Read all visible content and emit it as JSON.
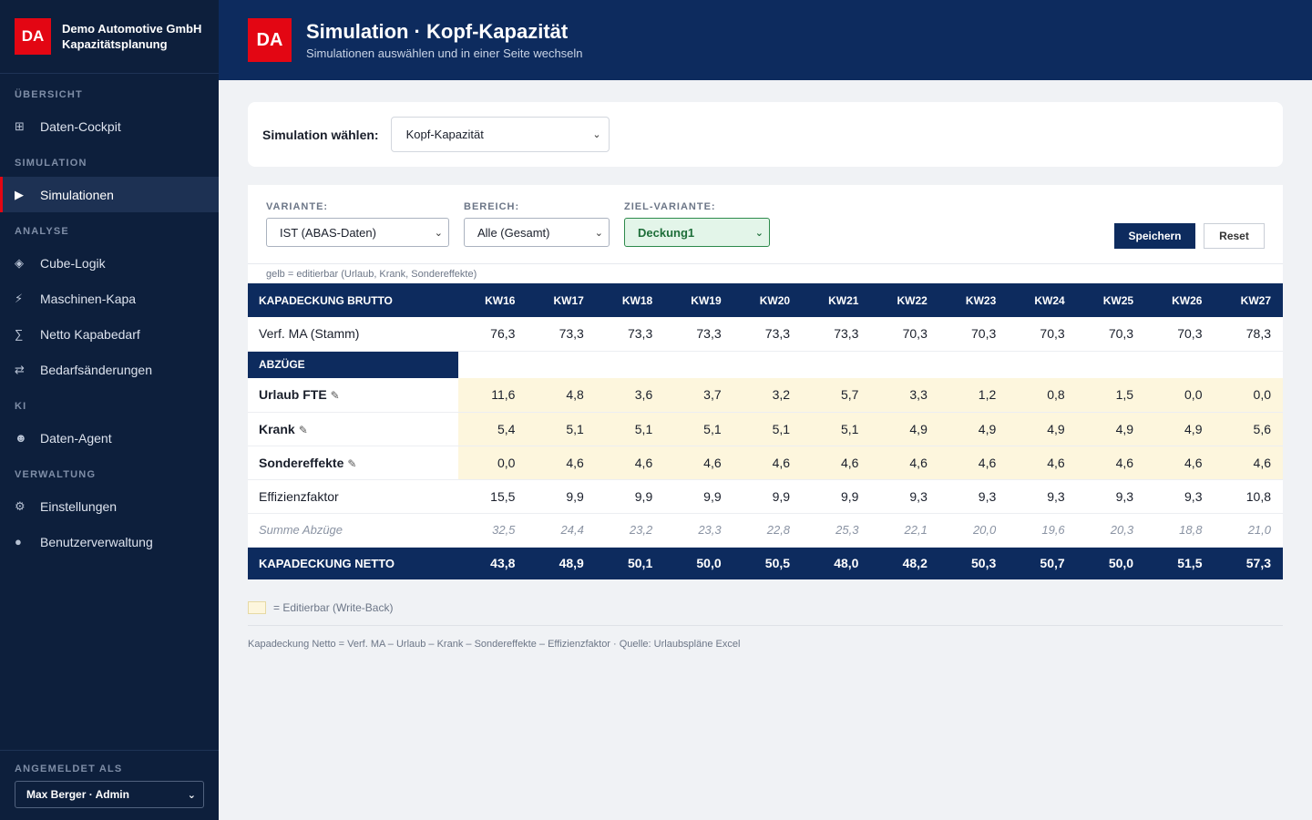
{
  "sidebar": {
    "brand_logo": "DA",
    "company": "Demo Automotive GmbH",
    "app": "Kapazitätsplanung",
    "sections": [
      {
        "label": "ÜBERSICHT",
        "items": [
          {
            "label": "Daten-Cockpit",
            "icon": "grid-icon",
            "glyph": "⊞"
          }
        ]
      },
      {
        "label": "SIMULATION",
        "items": [
          {
            "label": "Simulationen",
            "icon": "play-icon",
            "glyph": "▶"
          }
        ]
      },
      {
        "label": "ANALYSE",
        "items": [
          {
            "label": "Cube-Logik",
            "icon": "cube-icon",
            "glyph": "◈"
          },
          {
            "label": "Maschinen-Kapa",
            "icon": "lightning-icon",
            "glyph": "⚡"
          },
          {
            "label": "Netto Kapabedarf",
            "icon": "sigma-icon",
            "glyph": "∑"
          },
          {
            "label": "Bedarfsänderungen",
            "icon": "swap-icon",
            "glyph": "⇄"
          }
        ]
      },
      {
        "label": "KI",
        "items": [
          {
            "label": "Daten-Agent",
            "icon": "robot-icon",
            "glyph": "☻"
          }
        ]
      },
      {
        "label": "VERWALTUNG",
        "items": [
          {
            "label": "Einstellungen",
            "icon": "gear-icon",
            "glyph": "⚙"
          },
          {
            "label": "Benutzerverwaltung",
            "icon": "user-icon",
            "glyph": "●"
          }
        ]
      }
    ],
    "footer_label": "ANGEMELDET ALS",
    "user": "Max Berger · Admin"
  },
  "header": {
    "logo": "DA",
    "title": "Simulation · Kopf-Kapazität",
    "subtitle": "Simulationen auswählen und in einer Seite wechseln"
  },
  "sim_select": {
    "label": "Simulation wählen:",
    "value": "Kopf-Kapazität"
  },
  "filters": {
    "variante_label": "VARIANTE:",
    "variante_value": "IST (ABAS-Daten)",
    "bereich_label": "BEREICH:",
    "bereich_value": "Alle (Gesamt)",
    "ziel_label": "ZIEL-VARIANTE:",
    "ziel_value": "Deckung1",
    "save": "Speichern",
    "reset": "Reset",
    "hint": "gelb = editierbar (Urlaub, Krank, Sondereffekte)"
  },
  "table": {
    "header_label": "KAPADECKUNG BRUTTO",
    "weeks": [
      "KW16",
      "KW17",
      "KW18",
      "KW19",
      "KW20",
      "KW21",
      "KW22",
      "KW23",
      "KW24",
      "KW25",
      "KW26",
      "KW27"
    ],
    "verf": {
      "label": "Verf. MA (Stamm)",
      "values": [
        "76,3",
        "73,3",
        "73,3",
        "73,3",
        "73,3",
        "73,3",
        "70,3",
        "70,3",
        "70,3",
        "70,3",
        "70,3",
        "78,3"
      ]
    },
    "abzuege_label": "ABZÜGE",
    "urlaub": {
      "label": "Urlaub FTE",
      "values": [
        "11,6",
        "4,8",
        "3,6",
        "3,7",
        "3,2",
        "5,7",
        "3,3",
        "1,2",
        "0,8",
        "1,5",
        "0,0",
        "0,0"
      ]
    },
    "krank": {
      "label": "Krank",
      "values": [
        "5,4",
        "5,1",
        "5,1",
        "5,1",
        "5,1",
        "5,1",
        "4,9",
        "4,9",
        "4,9",
        "4,9",
        "4,9",
        "5,6"
      ]
    },
    "sonder": {
      "label": "Sondereffekte",
      "values": [
        "0,0",
        "4,6",
        "4,6",
        "4,6",
        "4,6",
        "4,6",
        "4,6",
        "4,6",
        "4,6",
        "4,6",
        "4,6",
        "4,6"
      ]
    },
    "effizienz": {
      "label": "Effizienzfaktor",
      "values": [
        "15,5",
        "9,9",
        "9,9",
        "9,9",
        "9,9",
        "9,9",
        "9,3",
        "9,3",
        "9,3",
        "9,3",
        "9,3",
        "10,8"
      ]
    },
    "summe": {
      "label": "Summe Abzüge",
      "values": [
        "32,5",
        "24,4",
        "23,2",
        "23,3",
        "22,8",
        "25,3",
        "22,1",
        "20,0",
        "19,6",
        "20,3",
        "18,8",
        "21,0"
      ]
    },
    "netto": {
      "label": "KAPADECKUNG NETTO",
      "values": [
        "43,8",
        "48,9",
        "50,1",
        "50,0",
        "50,5",
        "48,0",
        "48,2",
        "50,3",
        "50,7",
        "50,0",
        "51,5",
        "57,3"
      ]
    }
  },
  "legend": "= Editierbar (Write-Back)",
  "formula": "Kapadeckung Netto = Verf. MA – Urlaub – Krank – Sondereffekte – Effizienzfaktor · Quelle: Urlaubspläne Excel",
  "colors": {
    "accent": "#e30613",
    "navy": "#0d2b5e",
    "sidebar": "#0d1f3c",
    "editable": "#fdf6dd"
  }
}
